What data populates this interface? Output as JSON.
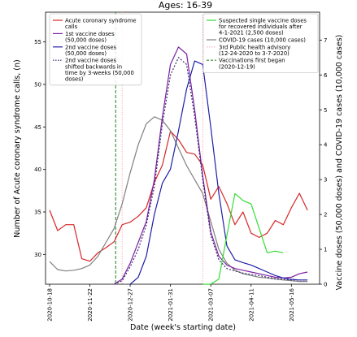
{
  "chart_data": {
    "type": "line",
    "title": "Ages: 16-39",
    "xlabel": "Date (week's starting date)",
    "ylabel_left": "Number of Acute coronary syndrome calls, (n)",
    "ylabel_right": "Vaccine doses (50,000 doses) and COVID-19 cases (10,000 cases)",
    "x_ticks": [
      "2020-10-18",
      "2020-11-22",
      "2020-12-27",
      "2021-01-31",
      "2021-03-07",
      "2021-04-11",
      "2021-05-16"
    ],
    "y_left_ticks": [
      30,
      35,
      40,
      45,
      50,
      55
    ],
    "y_left_lim": [
      26.5,
      58.5
    ],
    "y_right_ticks": [
      0,
      1,
      2,
      3,
      4,
      5,
      6,
      7
    ],
    "y_right_lim": [
      0,
      7.8
    ],
    "x_lim": [
      -0.5,
      33.5
    ],
    "vlines": [
      {
        "name": "3rd Public health advisory",
        "x": 9.0,
        "x2": 19.0,
        "color": "#f5b0b5",
        "style": "dotted"
      },
      {
        "name": "Vaccinations first began",
        "x": 8.2,
        "color": "#2e8b2e",
        "style": "dashed"
      }
    ],
    "legend_left": [
      {
        "label": "Acute coronary syndrome calls",
        "color": "#d62728",
        "style": "solid"
      },
      {
        "label": "1st vaccine doses (50,000 doses)",
        "color": "#7b1fa2",
        "style": "solid"
      },
      {
        "label": "2nd vaccine doses (50,000 doses)",
        "color": "#1f1fa8",
        "style": "solid"
      },
      {
        "label": "2nd vaccine doses shifted backwards in time by 3-weeks (50,000 doses)",
        "color": "#3a2a6a",
        "style": "dotted"
      }
    ],
    "legend_right": [
      {
        "label": "Suspected single vaccine doses for recovered individuals after 4-1-2021 (2,500 doses)",
        "color": "#33dd33",
        "style": "solid"
      },
      {
        "label": "COVID-19 cases (10,000 cases)",
        "color": "#808080",
        "style": "solid"
      },
      {
        "label": "3rd Public health advisory (12-24-2020 to 3-7-2020)",
        "color": "#f5b0b5",
        "style": "dotted"
      },
      {
        "label": "Vaccinations first began (2020-12-19)",
        "color": "#2e8b2e",
        "style": "dashed"
      }
    ],
    "series": [
      {
        "name": "Acute coronary syndrome calls",
        "axis": "left",
        "color": "#d62728",
        "dash": "",
        "x": [
          0,
          1,
          2,
          3,
          4,
          5,
          6,
          7,
          8,
          9,
          10,
          11,
          12,
          13,
          14,
          15,
          16,
          17,
          18,
          19,
          20,
          21,
          22,
          23,
          24,
          25,
          26,
          27,
          28,
          29,
          30,
          31,
          32
        ],
        "values": [
          35.2,
          32.8,
          33.5,
          33.5,
          29.5,
          29.2,
          30.2,
          30.8,
          31.5,
          33.5,
          33.8,
          34.5,
          35.5,
          38.5,
          40.5,
          44.5,
          43.5,
          42.0,
          41.8,
          40.5,
          36.5,
          38.0,
          36.0,
          33.5,
          35.0,
          32.5,
          32.0,
          32.5,
          34.0,
          33.5,
          35.5,
          37.2,
          35.2
        ]
      },
      {
        "name": "COVID-19 cases",
        "axis": "right",
        "color": "#808080",
        "dash": "",
        "x": [
          0,
          1,
          2,
          3,
          4,
          5,
          6,
          7,
          8,
          9,
          10,
          11,
          12,
          13,
          14,
          15,
          16,
          17,
          18,
          19,
          20,
          21,
          22,
          23,
          24,
          25,
          26,
          27,
          28,
          29,
          30,
          31,
          32
        ],
        "values": [
          0.65,
          0.42,
          0.38,
          0.4,
          0.45,
          0.55,
          0.8,
          1.2,
          1.6,
          2.3,
          3.2,
          4.0,
          4.6,
          4.8,
          4.7,
          4.4,
          3.9,
          3.4,
          3.0,
          2.6,
          1.8,
          1.0,
          0.6,
          0.4,
          0.3,
          0.25,
          0.2,
          0.18,
          0.15,
          0.12,
          0.1,
          0.08,
          0.08
        ]
      },
      {
        "name": "1st vaccine doses",
        "axis": "right",
        "color": "#7b1fa2",
        "dash": "",
        "x": [
          8,
          9,
          10,
          11,
          12,
          13,
          14,
          15,
          16,
          17,
          18,
          19,
          20,
          21,
          22,
          23,
          24,
          25,
          26,
          27,
          28,
          29,
          30,
          31,
          32
        ],
        "values": [
          0.0,
          0.15,
          0.6,
          1.2,
          1.8,
          3.0,
          4.8,
          6.3,
          6.8,
          6.6,
          5.0,
          3.1,
          1.5,
          0.8,
          0.55,
          0.45,
          0.4,
          0.35,
          0.3,
          0.25,
          0.2,
          0.18,
          0.2,
          0.3,
          0.35
        ]
      },
      {
        "name": "2nd vaccine doses shifted backwards in time by 3-weeks",
        "axis": "right",
        "color": "#3a2a6a",
        "dash": "2,2",
        "x": [
          8,
          9,
          10,
          11,
          12,
          13,
          14,
          15,
          16,
          17,
          18,
          19,
          20,
          21,
          22,
          23,
          24,
          25,
          26,
          27,
          28,
          29,
          30,
          31,
          32
        ],
        "values": [
          0.0,
          0.1,
          0.5,
          1.0,
          1.7,
          2.8,
          4.6,
          6.0,
          6.5,
          6.3,
          4.8,
          3.0,
          1.4,
          0.7,
          0.45,
          0.38,
          0.32,
          0.28,
          0.25,
          0.2,
          0.16,
          0.14,
          0.12,
          0.12,
          0.12
        ]
      },
      {
        "name": "2nd vaccine doses",
        "axis": "right",
        "color": "#1f1fa8",
        "dash": "",
        "x": [
          10,
          11,
          12,
          13,
          14,
          15,
          16,
          17,
          18,
          19,
          20,
          21,
          22,
          23,
          24,
          25,
          26,
          27,
          28,
          29,
          30,
          31,
          32
        ],
        "values": [
          0.0,
          0.2,
          0.8,
          2.0,
          2.9,
          3.3,
          4.4,
          5.6,
          6.4,
          6.3,
          4.5,
          2.6,
          1.1,
          0.7,
          0.62,
          0.55,
          0.45,
          0.35,
          0.25,
          0.18,
          0.14,
          0.12,
          0.12
        ]
      },
      {
        "name": "Suspected single vaccine doses for recovered individuals",
        "axis": "right",
        "color": "#33dd33",
        "dash": "",
        "x": [
          19,
          20,
          21,
          22,
          23,
          24,
          25,
          26,
          27,
          28,
          29
        ],
        "values": [
          0.0,
          0.0,
          0.15,
          1.4,
          2.6,
          2.4,
          2.3,
          1.6,
          0.9,
          0.95,
          0.9
        ]
      }
    ]
  }
}
